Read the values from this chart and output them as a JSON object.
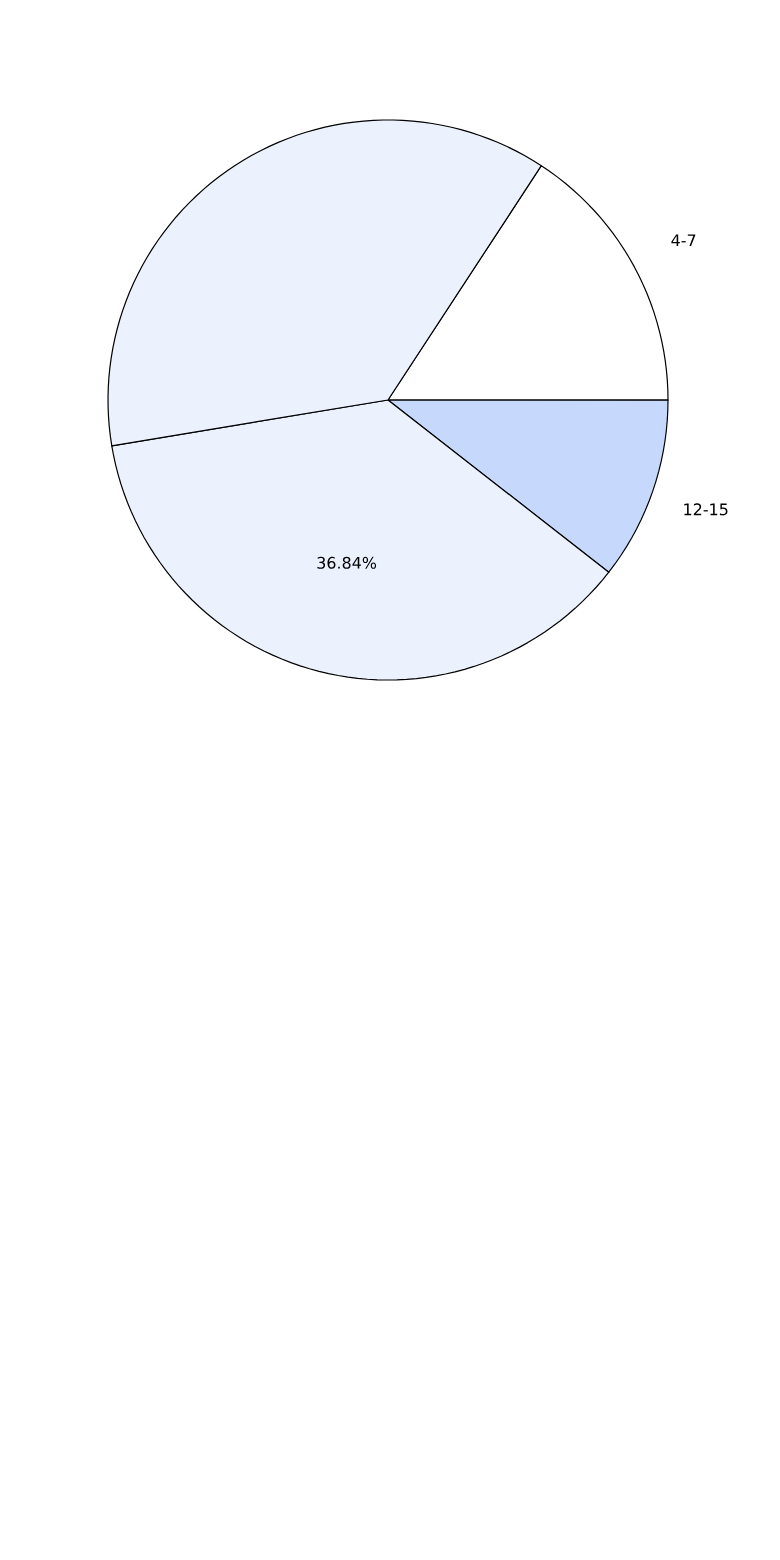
{
  "chart_data": {
    "type": "pie",
    "categories": [
      "4-7",
      "12-15",
      null,
      null
    ],
    "values": [
      15.79,
      10.53,
      36.84,
      36.84
    ],
    "colors": [
      "#ffffff",
      "#c6d9fd",
      "#ebf1fd",
      "#ebf1fd"
    ],
    "value_labels": [
      null,
      null,
      "36.84%",
      null
    ]
  }
}
